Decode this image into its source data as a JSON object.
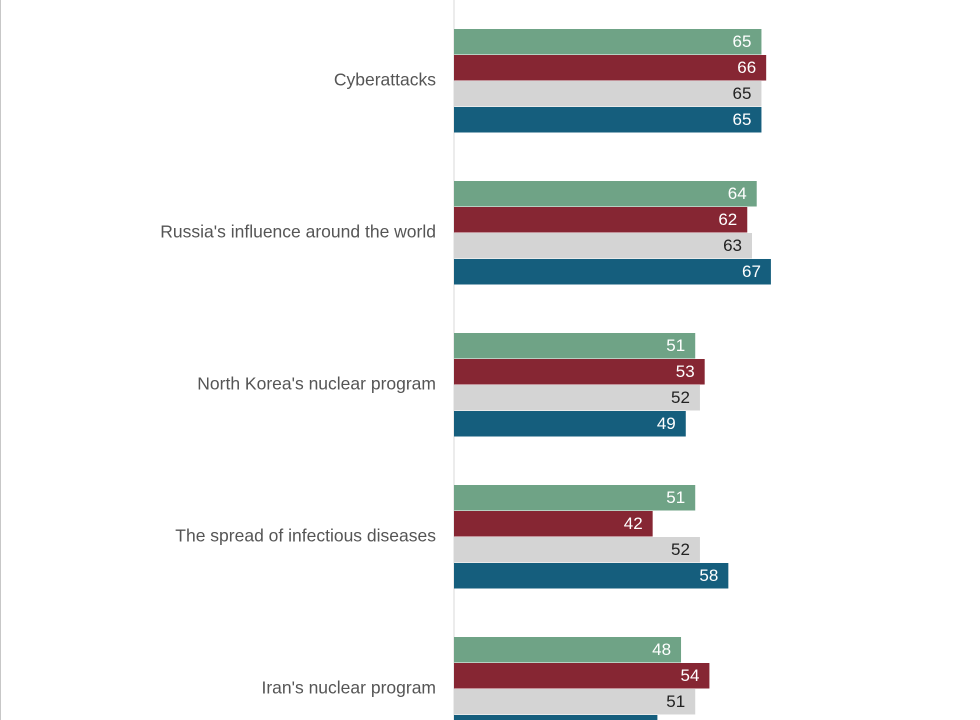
{
  "chart_data": {
    "type": "bar",
    "orientation": "horizontal",
    "categories": [
      "Cyberattacks",
      "Russia's influence around the world",
      "North Korea's nuclear program",
      "The spread of infectious diseases",
      "Iran's nuclear program"
    ],
    "series": [
      {
        "values": [
          65,
          64,
          51,
          51,
          48
        ],
        "color": "#6fa386",
        "label_color": "#ffffff"
      },
      {
        "values": [
          66,
          62,
          53,
          42,
          54
        ],
        "color": "#862633",
        "label_color": "#ffffff"
      },
      {
        "values": [
          65,
          63,
          52,
          52,
          51
        ],
        "color": "#d4d4d4",
        "label_color": "#222222"
      },
      {
        "values": [
          65,
          67,
          49,
          58,
          43
        ],
        "color": "#155e7d",
        "label_color": "#ffffff"
      }
    ],
    "xlim": [
      0,
      100
    ],
    "grid": false,
    "legend": "none",
    "colors": {
      "axis_line": "#d9d9d9",
      "category_text": "#555555"
    }
  }
}
